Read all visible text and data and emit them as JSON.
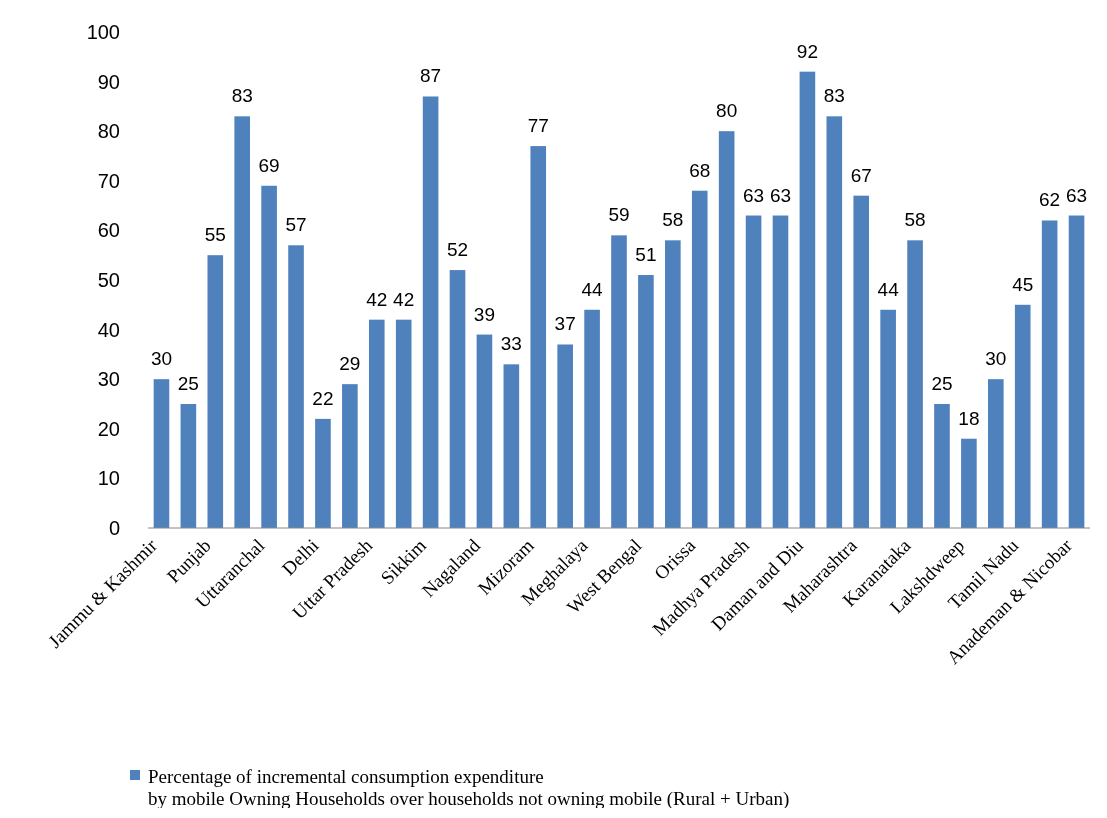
{
  "chart_data": {
    "type": "bar",
    "categories": [
      "Jammu & Kashmir",
      null,
      "Punjab",
      null,
      "Uttaranchal",
      null,
      "Delhi",
      null,
      "Uttar Pradesh",
      null,
      "Sikkim",
      null,
      "Nagaland",
      null,
      "Mizoram",
      null,
      "Meghalaya",
      null,
      "West Bengal",
      null,
      "Orissa",
      null,
      "Madhya Pradesh",
      null,
      "Daman and Diu",
      null,
      "Maharashtra",
      null,
      "Karanataka",
      null,
      "Lakshdweep",
      null,
      "Tamil Nadu",
      null,
      "Anademan & Nicobar"
    ],
    "series": [
      {
        "name": "Percentage of incremental consumption expenditure by mobile Owning Households over households not owning mobile (Rural + Urban)",
        "color": "#4f81bd",
        "values": [
          30,
          25,
          55,
          83,
          69,
          57,
          22,
          29,
          42,
          42,
          87,
          52,
          39,
          33,
          77,
          37,
          44,
          59,
          51,
          58,
          68,
          80,
          63,
          63,
          92,
          83,
          67,
          44,
          58,
          25,
          18,
          30,
          45,
          62,
          63
        ]
      }
    ],
    "ylim": [
      0,
      100
    ],
    "yticks": [
      0,
      10,
      20,
      30,
      40,
      50,
      60,
      70,
      80,
      90,
      100
    ],
    "data_labels": true,
    "grid": false,
    "legend": "bottom"
  }
}
